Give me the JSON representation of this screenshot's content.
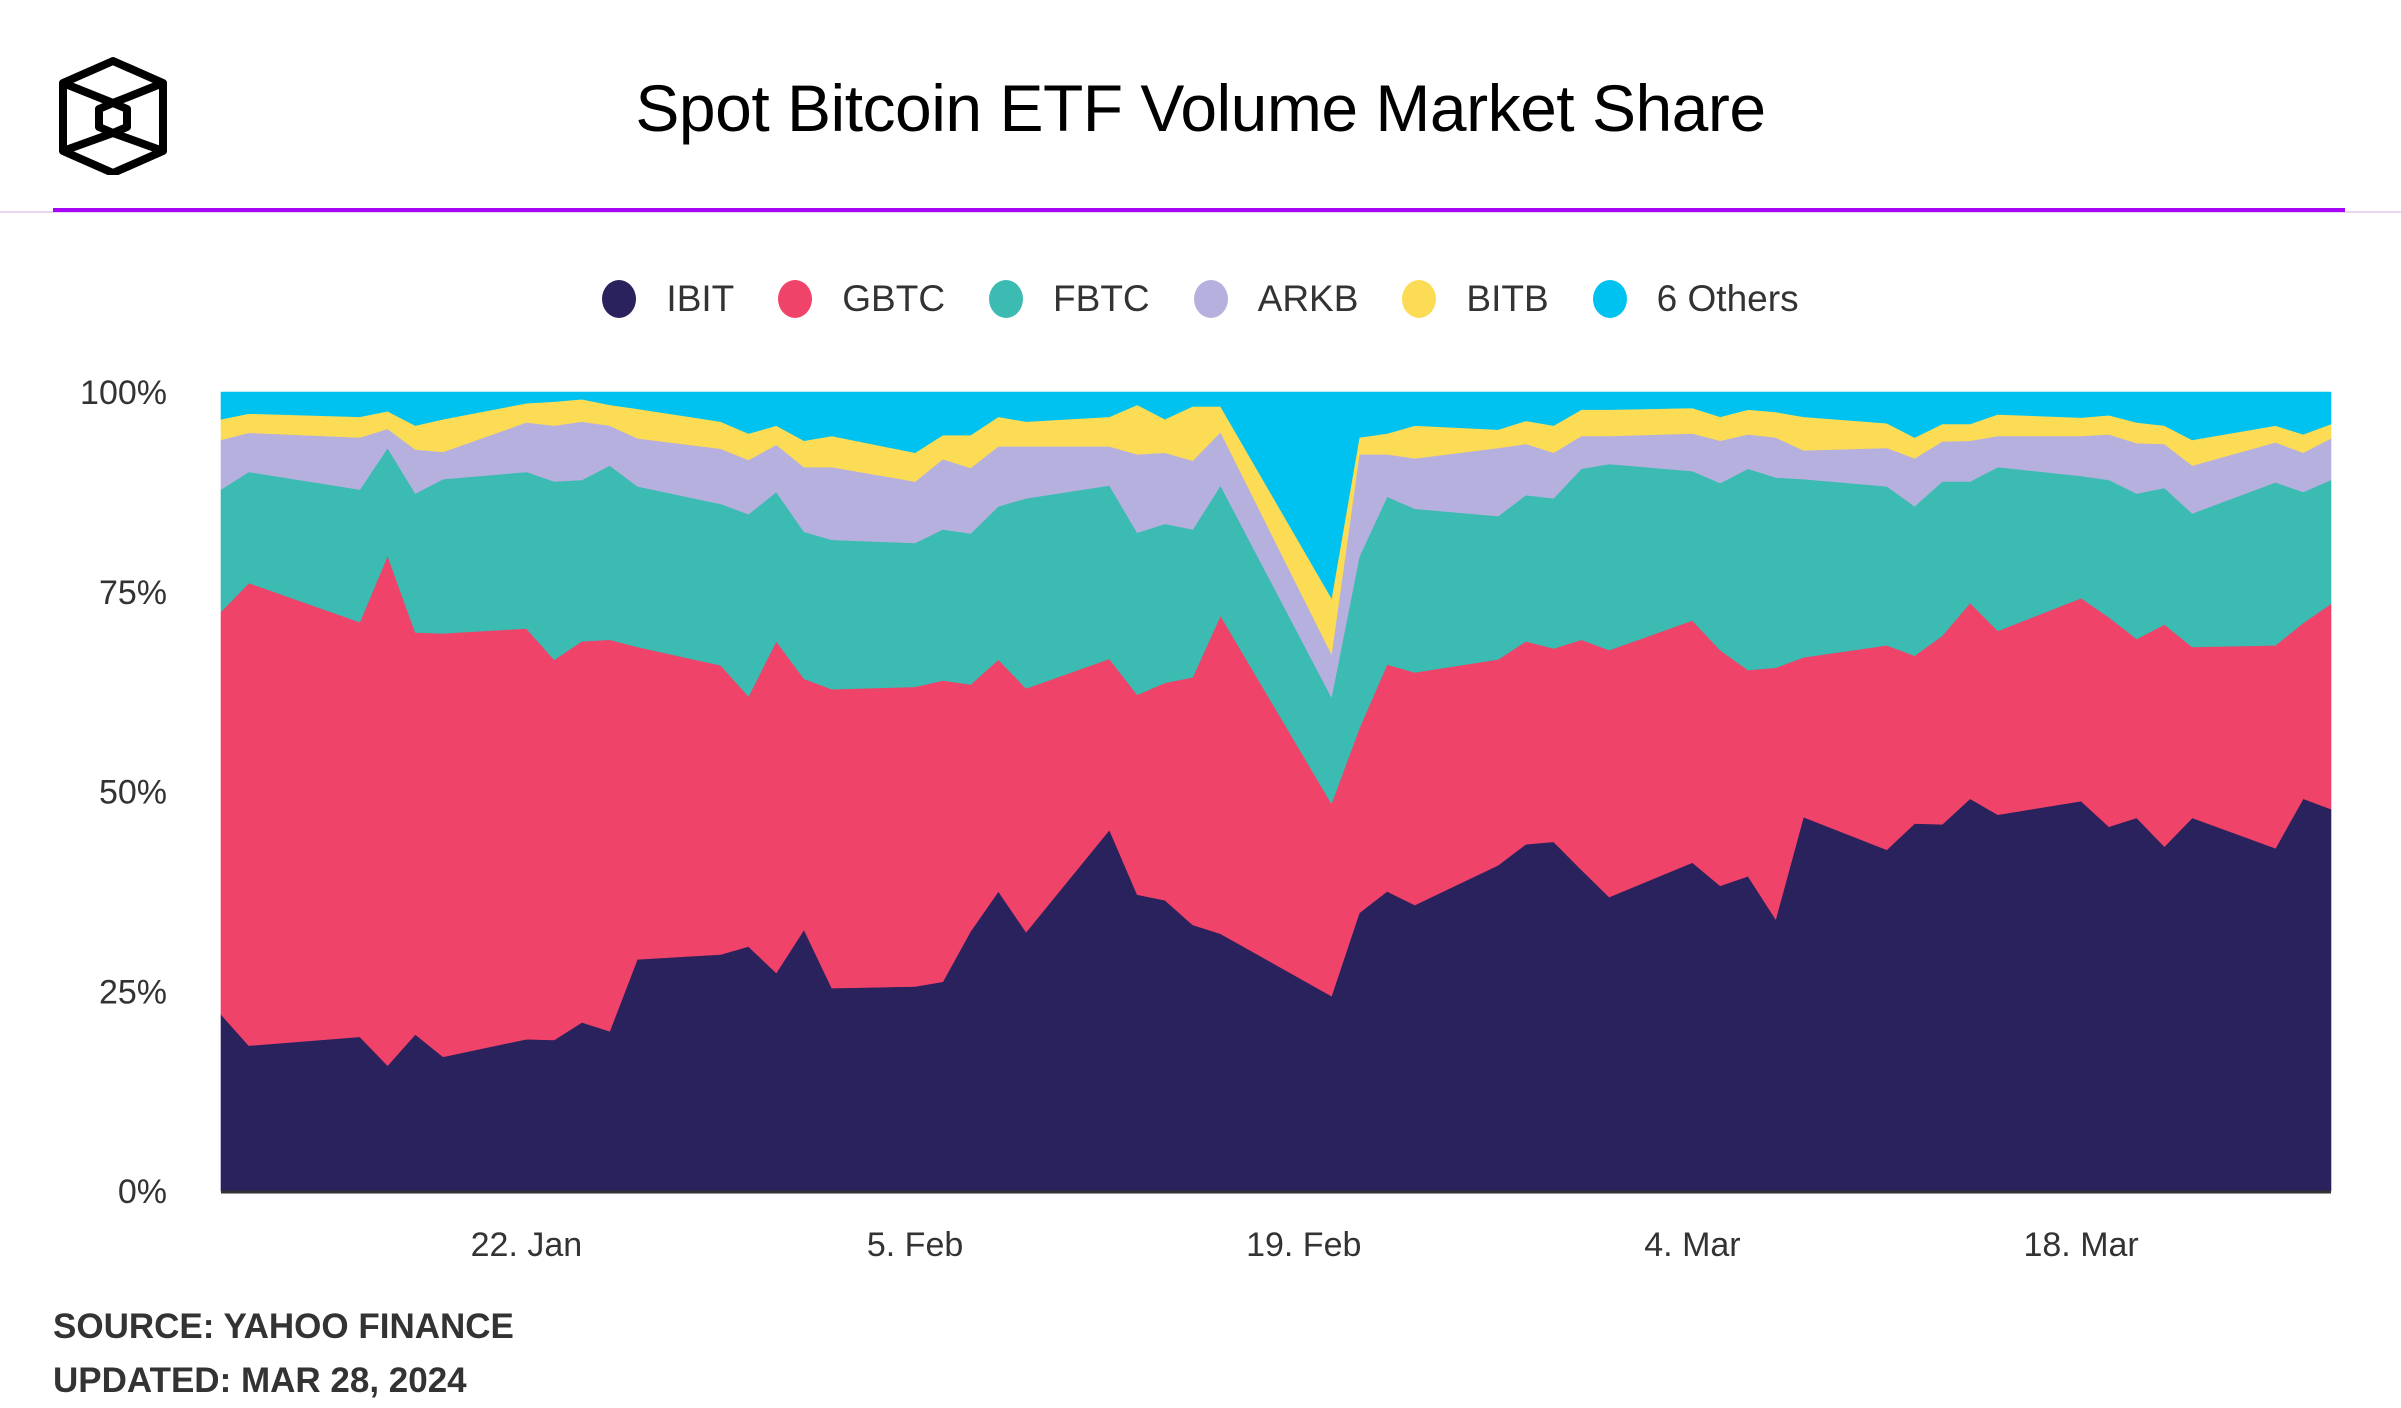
{
  "header": {
    "logo": "cube-logo-icon",
    "title": "Spot Bitcoin ETF Volume Market Share",
    "accent_color": "#a507f5"
  },
  "footer": {
    "source": "SOURCE: YAHOO FINANCE",
    "updated": "UPDATED: MAR 28, 2024"
  },
  "chart_data": {
    "type": "area",
    "stacking": "percent",
    "title": "Spot Bitcoin ETF Volume Market Share",
    "xlabel": "",
    "ylabel": "",
    "ylim": [
      0,
      100
    ],
    "yticks": [
      "0%",
      "25%",
      "50%",
      "75%",
      "100%"
    ],
    "ytick_values": [
      0,
      25,
      50,
      75,
      100
    ],
    "xticks": [
      {
        "label": "22. Jan",
        "date": "2024-01-22"
      },
      {
        "label": "5. Feb",
        "date": "2024-02-05"
      },
      {
        "label": "19. Feb",
        "date": "2024-02-19"
      },
      {
        "label": "4. Mar",
        "date": "2024-03-04"
      },
      {
        "label": "18. Mar",
        "date": "2024-03-18"
      }
    ],
    "xlim": [
      "2024-01-11",
      "2024-03-27"
    ],
    "grid": false,
    "legend_position": "top-center",
    "x": [
      "2024-01-11",
      "2024-01-12",
      "2024-01-16",
      "2024-01-17",
      "2024-01-18",
      "2024-01-19",
      "2024-01-22",
      "2024-01-23",
      "2024-01-24",
      "2024-01-25",
      "2024-01-26",
      "2024-01-29",
      "2024-01-30",
      "2024-01-31",
      "2024-02-01",
      "2024-02-02",
      "2024-02-05",
      "2024-02-06",
      "2024-02-07",
      "2024-02-08",
      "2024-02-09",
      "2024-02-12",
      "2024-02-13",
      "2024-02-14",
      "2024-02-15",
      "2024-02-16",
      "2024-02-20",
      "2024-02-21",
      "2024-02-22",
      "2024-02-23",
      "2024-02-26",
      "2024-02-27",
      "2024-02-28",
      "2024-02-29",
      "2024-03-01",
      "2024-03-04",
      "2024-03-05",
      "2024-03-06",
      "2024-03-07",
      "2024-03-08",
      "2024-03-11",
      "2024-03-12",
      "2024-03-13",
      "2024-03-14",
      "2024-03-15",
      "2024-03-18",
      "2024-03-19",
      "2024-03-20",
      "2024-03-21",
      "2024-03-22",
      "2024-03-25",
      "2024-03-26",
      "2024-03-27"
    ],
    "series": [
      {
        "name": "IBIT",
        "color": "#2a225c",
        "values": [
          22.1,
          18.2,
          19.3,
          15.7,
          19.6,
          16.8,
          19.0,
          18.9,
          21.1,
          20.0,
          29.0,
          29.6,
          30.6,
          27.3,
          32.7,
          25.4,
          25.6,
          26.2,
          32.5,
          37.5,
          32.4,
          45.2,
          37.1,
          36.4,
          33.3,
          32.2,
          24.4,
          34.8,
          37.5,
          35.8,
          40.7,
          43.4,
          43.7,
          40.2,
          36.8,
          41.1,
          38.2,
          39.4,
          34.0,
          46.8,
          42.7,
          46.0,
          45.9,
          49.1,
          47.1,
          48.8,
          45.6,
          46.7,
          43.1,
          46.7,
          42.9,
          49.1,
          47.8
        ]
      },
      {
        "name": "GBTC",
        "color": "#ef4369",
        "values": [
          50.4,
          57.9,
          51.9,
          63.8,
          50.3,
          53.0,
          51.4,
          47.6,
          47.7,
          49.0,
          39.1,
          36.2,
          31.3,
          41.5,
          31.4,
          37.4,
          37.5,
          37.7,
          30.9,
          29.0,
          30.5,
          21.4,
          25.0,
          27.2,
          31.0,
          39.8,
          24.1,
          23.1,
          28.4,
          29.1,
          25.7,
          25.4,
          24.2,
          28.8,
          30.9,
          30.3,
          29.5,
          25.8,
          31.5,
          20.0,
          25.6,
          21.0,
          23.6,
          24.5,
          23.0,
          25.4,
          26.2,
          22.4,
          27.8,
          21.4,
          25.4,
          22.0,
          25.7
        ]
      },
      {
        "name": "FBTC",
        "color": "#3bbbb1",
        "values": [
          15.3,
          13.9,
          16.6,
          13.5,
          17.4,
          19.3,
          19.6,
          22.3,
          20.2,
          21.8,
          20.1,
          20.2,
          22.8,
          18.7,
          18.4,
          18.7,
          18.0,
          18.9,
          18.9,
          19.2,
          23.8,
          21.7,
          20.3,
          19.9,
          18.5,
          16.3,
          13.3,
          21.5,
          21.0,
          20.5,
          17.9,
          18.3,
          18.8,
          21.4,
          23.3,
          18.7,
          20.9,
          25.2,
          23.8,
          22.3,
          19.9,
          18.7,
          19.3,
          15.2,
          20.5,
          15.3,
          17.2,
          18.2,
          17.1,
          16.7,
          20.4,
          16.4,
          15.5
        ]
      },
      {
        "name": "ARKB",
        "color": "#b6b0df",
        "values": [
          6.2,
          4.9,
          6.5,
          2.4,
          5.5,
          3.4,
          6.2,
          7.0,
          7.3,
          5.0,
          6.0,
          6.9,
          6.8,
          5.9,
          8.1,
          9.1,
          7.7,
          8.8,
          8.2,
          7.5,
          6.5,
          4.9,
          9.8,
          8.9,
          8.6,
          6.7,
          5.4,
          12.8,
          5.3,
          6.3,
          8.5,
          6.4,
          5.7,
          4.1,
          3.5,
          4.7,
          5.3,
          4.3,
          5.0,
          3.6,
          4.8,
          6.0,
          5.0,
          5.1,
          3.9,
          5.0,
          5.7,
          6.3,
          5.5,
          6.0,
          5.0,
          4.9,
          5.2
        ]
      },
      {
        "name": "BITB",
        "color": "#fcdc54",
        "values": [
          2.6,
          2.4,
          2.6,
          2.2,
          3.0,
          4.1,
          2.4,
          3.0,
          2.8,
          2.6,
          3.7,
          3.4,
          3.3,
          2.4,
          3.3,
          3.9,
          3.6,
          3.0,
          4.1,
          3.7,
          3.1,
          3.7,
          6.2,
          4.2,
          6.8,
          3.2,
          7.0,
          2.1,
          2.6,
          4.1,
          2.3,
          2.9,
          3.4,
          3.3,
          3.3,
          3.2,
          3.0,
          3.1,
          3.2,
          4.2,
          3.1,
          2.6,
          2.2,
          2.1,
          2.7,
          2.3,
          2.4,
          2.6,
          2.3,
          3.2,
          2.1,
          2.3,
          1.8
        ]
      },
      {
        "name": "6 Others",
        "color": "#00c2f0",
        "values": [
          3.4,
          2.7,
          3.1,
          2.4,
          4.2,
          3.4,
          1.4,
          1.2,
          0.9,
          1.6,
          2.1,
          3.7,
          5.2,
          4.2,
          6.1,
          5.5,
          7.6,
          5.4,
          5.4,
          3.1,
          3.7,
          3.1,
          1.6,
          3.4,
          1.8,
          1.8,
          25.8,
          5.7,
          5.2,
          4.2,
          4.7,
          3.6,
          4.2,
          2.2,
          2.2,
          2.0,
          3.1,
          2.2,
          2.5,
          3.1,
          3.9,
          5.7,
          4.0,
          4.0,
          2.8,
          3.2,
          2.9,
          3.8,
          4.2,
          6.0,
          4.2,
          5.3,
          4.0
        ]
      }
    ]
  }
}
